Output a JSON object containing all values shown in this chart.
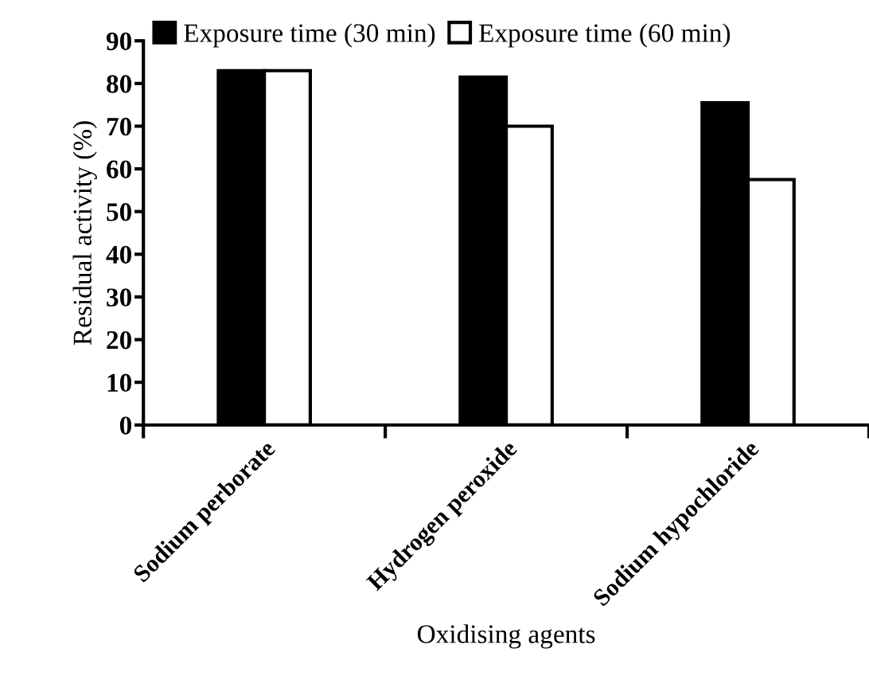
{
  "chart_data": {
    "type": "bar",
    "xlabel": "Oxidising agents",
    "ylabel": "Residual activity (%)",
    "categories": [
      "Sodium perborate",
      "Hydrogen peroxide",
      "Sodium hypochloride"
    ],
    "series": [
      {
        "name": "Exposure time (30 min)",
        "color": "#000000",
        "values": [
          83,
          81.5,
          75.5
        ]
      },
      {
        "name": "Exposure time (60 min)",
        "color": "#ffffff",
        "values": [
          83,
          70,
          57.5
        ]
      }
    ],
    "ylim": [
      0,
      90
    ],
    "yticks": [
      0,
      10,
      20,
      30,
      40,
      50,
      60,
      70,
      80,
      90
    ],
    "grid": false,
    "legend": "top"
  }
}
